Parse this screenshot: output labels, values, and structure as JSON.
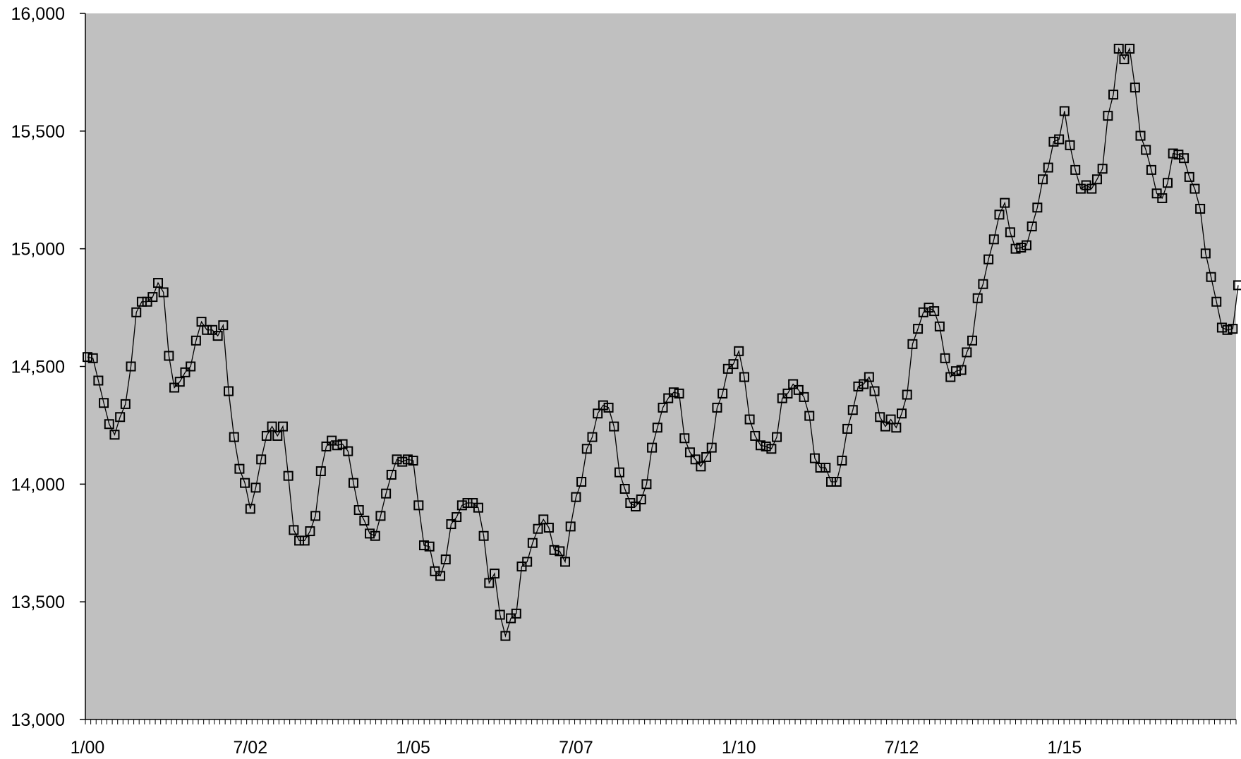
{
  "chart_data": {
    "type": "line",
    "title": "",
    "xlabel": "",
    "ylabel": "",
    "ylim": [
      13000,
      16000
    ],
    "y_ticks": [
      {
        "value": 13000,
        "label": "13,000"
      },
      {
        "value": 13500,
        "label": "13,500"
      },
      {
        "value": 14000,
        "label": "14,000"
      },
      {
        "value": 14500,
        "label": "14,500"
      },
      {
        "value": 15000,
        "label": "15,000"
      },
      {
        "value": 15500,
        "label": "15,500"
      },
      {
        "value": 16000,
        "label": "16,000"
      }
    ],
    "x_ticks": [
      {
        "index": 0,
        "label": "1/00"
      },
      {
        "index": 30,
        "label": "7/02"
      },
      {
        "index": 60,
        "label": "1/05"
      },
      {
        "index": 90,
        "label": "7/07"
      },
      {
        "index": 120,
        "label": "1/10"
      },
      {
        "index": 150,
        "label": "7/12"
      },
      {
        "index": 180,
        "label": "1/15"
      }
    ],
    "x_minor_tick_count": 214,
    "grid": false,
    "plot_background": "#c0c0c0",
    "line_color": "#000000",
    "marker": "square",
    "series": [
      {
        "values": [
          14540,
          14535,
          14440,
          14345,
          14255,
          14210,
          14285,
          14340,
          14500,
          14730,
          14775,
          14775,
          14795,
          14855,
          14815,
          14545,
          14410,
          14435,
          14475,
          14500,
          14610,
          14690,
          14655,
          14655,
          14630,
          14675,
          14395,
          14200,
          14065,
          14005,
          13895,
          13985,
          14105,
          14205,
          14245,
          14205,
          14245,
          14035,
          13805,
          13760,
          13760,
          13800,
          13865,
          14055,
          14160,
          14185,
          14165,
          14170,
          14140,
          14005,
          13890,
          13845,
          13790,
          13780,
          13865,
          13960,
          14040,
          14105,
          14095,
          14105,
          14100,
          13910,
          13740,
          13735,
          13630,
          13610,
          13680,
          13830,
          13860,
          13910,
          13920,
          13920,
          13900,
          13780,
          13580,
          13620,
          13445,
          13355,
          13430,
          13450,
          13650,
          13670,
          13750,
          13810,
          13850,
          13815,
          13720,
          13715,
          13670,
          13820,
          13945,
          14010,
          14150,
          14200,
          14300,
          14335,
          14325,
          14245,
          14050,
          13980,
          13920,
          13905,
          13935,
          14000,
          14155,
          14240,
          14325,
          14365,
          14390,
          14385,
          14195,
          14135,
          14105,
          14075,
          14115,
          14155,
          14325,
          14385,
          14490,
          14510,
          14565,
          14455,
          14275,
          14205,
          14165,
          14160,
          14150,
          14200,
          14365,
          14385,
          14425,
          14400,
          14370,
          14290,
          14110,
          14070,
          14070,
          14010,
          14010,
          14100,
          14235,
          14315,
          14415,
          14425,
          14455,
          14395,
          14285,
          14245,
          14275,
          14240,
          14300,
          14380,
          14595,
          14660,
          14730,
          14750,
          14735,
          14670,
          14535,
          14455,
          14480,
          14485,
          14560,
          14610,
          14790,
          14850,
          14955,
          15040,
          15145,
          15195,
          15070,
          15000,
          15005,
          15015,
          15095,
          15175,
          15295,
          15345,
          15455,
          15465,
          15585,
          15440,
          15335,
          15255,
          15270,
          15255,
          15295,
          15340,
          15565,
          15655,
          15850,
          15805,
          15850,
          15685,
          15480,
          15420,
          15335,
          15235,
          15215,
          15280,
          15405,
          15400,
          15385,
          15305,
          15255,
          15170,
          14980,
          14880,
          14775,
          14665,
          14655,
          14660,
          14845
        ]
      }
    ]
  }
}
